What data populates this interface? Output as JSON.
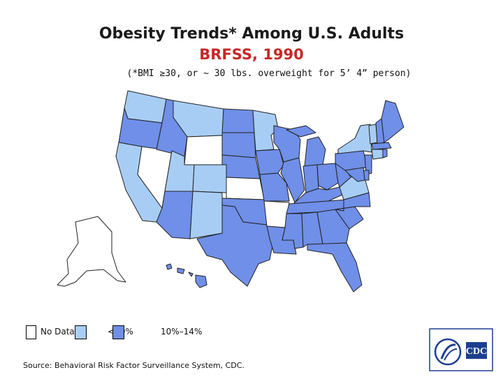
{
  "title": "Obesity Trends* Among U.S. Adults",
  "subtitle": "BRFSS, 1990",
  "note": "(*BMI ≥30, or ~ 30 lbs. overweight for 5’ 4” person)",
  "colors": {
    "no_data": "#ffffff",
    "lt10": "#a8cdf5",
    "10_14": "#6f8fe8",
    "title": "#1a1a1a",
    "subtitle": "#c62828"
  },
  "legend": [
    {
      "label": "No Data",
      "color": "#ffffff"
    },
    {
      "label": "<10%",
      "color": "#a8cdf5"
    },
    {
      "label": "10%–14%",
      "color": "#6f8fe8"
    }
  ],
  "states": {
    "WA": "lt10",
    "OR": "10_14",
    "CA": "lt10",
    "NV": "no_data",
    "ID": "10_14",
    "MT": "lt10",
    "WY": "no_data",
    "UT": "lt10",
    "CO": "lt10",
    "AZ": "10_14",
    "NM": "lt10",
    "ND": "10_14",
    "SD": "10_14",
    "NE": "10_14",
    "KS": "no_data",
    "OK": "10_14",
    "TX": "10_14",
    "MN": "lt10",
    "IA": "10_14",
    "MO": "10_14",
    "AR": "no_data",
    "LA": "10_14",
    "WI": "10_14",
    "IL": "10_14",
    "MI": "10_14",
    "IN": "10_14",
    "OH": "10_14",
    "KY": "10_14",
    "TN": "10_14",
    "MS": "10_14",
    "AL": "10_14",
    "GA": "10_14",
    "FL": "10_14",
    "SC": "10_14",
    "NC": "10_14",
    "VA": "lt10",
    "WV": "10_14",
    "PA": "10_14",
    "NY": "lt10",
    "VT": "lt10",
    "NH": "10_14",
    "ME": "10_14",
    "MA": "10_14",
    "CT": "lt10",
    "RI": "10_14",
    "NJ": "10_14",
    "DE": "10_14",
    "MD": "10_14",
    "AK": "no_data",
    "HI": "10_14"
  },
  "source": "Source: Behavioral Risk Factor Surveillance System, CDC.",
  "logo_text": "CDC"
}
